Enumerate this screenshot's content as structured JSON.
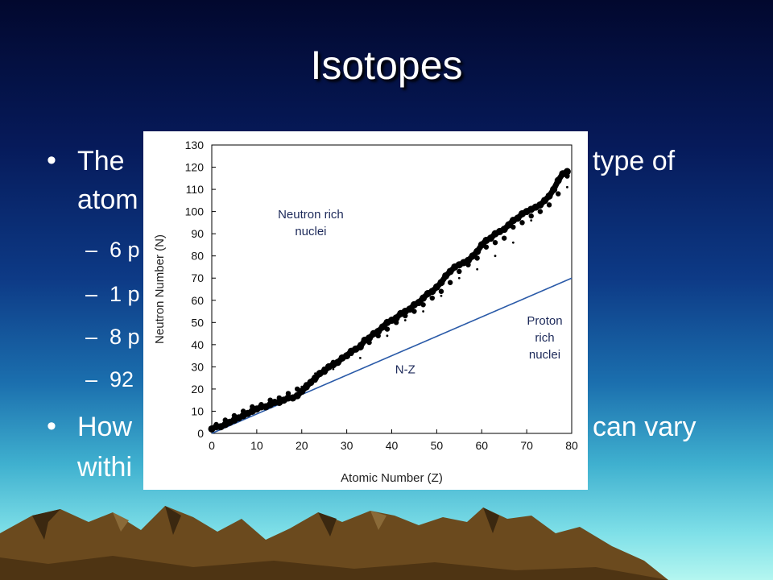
{
  "slide": {
    "title": "Isotopes",
    "bullets": [
      {
        "line1": "The",
        "line1_right": "type of",
        "line2": "atom"
      },
      {
        "line1": "How",
        "line1_right": "can vary",
        "line2": "withi"
      }
    ],
    "sub_items": [
      "6 p",
      "1 p",
      "8 p",
      "92"
    ],
    "dash": "–",
    "bullet_char": "•"
  },
  "chart_data": {
    "type": "scatter",
    "xlabel": "Atomic Number (Z)",
    "ylabel": "Neutron Number (N)",
    "xlim": [
      0,
      80
    ],
    "ylim": [
      0,
      130
    ],
    "xticks": [
      "0",
      "10",
      "20",
      "30",
      "40",
      "50",
      "60",
      "70",
      "80"
    ],
    "yticks": [
      "0",
      "10",
      "20",
      "30",
      "40",
      "50",
      "60",
      "70",
      "80",
      "90",
      "100",
      "110",
      "120",
      "130"
    ],
    "grid": false,
    "annotations": [
      {
        "lines": [
          "Neutron rich",
          "nuclei"
        ],
        "x": 22,
        "y": 97
      },
      {
        "lines": [
          "Proton",
          "rich",
          "nuclei"
        ],
        "x": 74,
        "y": 49
      },
      {
        "lines": [
          "N-Z"
        ],
        "x": 43,
        "y": 27
      }
    ],
    "reference_line": {
      "name": "N-Z",
      "points": [
        [
          0,
          0
        ],
        [
          80,
          70
        ]
      ]
    },
    "series": [
      {
        "x": [
          0,
          1,
          2,
          3,
          4,
          5,
          6,
          7,
          8,
          9,
          10,
          11,
          12,
          13,
          14,
          15,
          16,
          17,
          18,
          19,
          20,
          21,
          22,
          23,
          24,
          25,
          26,
          27,
          28,
          29,
          30,
          31,
          32,
          33,
          34,
          35,
          36,
          37,
          38,
          39,
          40,
          41,
          42,
          43,
          44,
          45,
          46,
          47,
          48,
          49,
          50,
          51,
          52,
          53,
          54,
          55,
          56,
          57,
          58,
          59,
          60,
          61,
          62,
          63,
          64,
          65,
          66,
          67,
          68,
          69,
          70,
          71,
          72,
          73,
          74,
          75,
          76,
          77,
          78,
          79
        ],
        "y": [
          2,
          3,
          3,
          4,
          5,
          6,
          7,
          8,
          9,
          10,
          11,
          12,
          12,
          13,
          14,
          14,
          15,
          16,
          16,
          17,
          19,
          21,
          23,
          25,
          27,
          28,
          30,
          31,
          32,
          34,
          35,
          37,
          38,
          39,
          42,
          43,
          45,
          46,
          48,
          50,
          51,
          52,
          54,
          55,
          56,
          58,
          59,
          61,
          63,
          64,
          66,
          68,
          71,
          73,
          75,
          76,
          77,
          78,
          80,
          82,
          85,
          87,
          88,
          90,
          91,
          92,
          94,
          96,
          97,
          99,
          100,
          101,
          102,
          103,
          105,
          107,
          110,
          114,
          117,
          118
        ]
      },
      {
        "x": [
          1,
          3,
          5,
          7,
          9,
          11,
          13,
          15,
          17,
          19,
          21,
          23,
          25,
          27,
          29,
          31,
          33,
          35,
          37,
          39,
          41,
          43,
          45,
          47,
          49,
          51,
          53,
          55,
          57,
          59,
          61,
          63,
          65,
          67,
          69,
          71,
          73,
          75,
          77,
          79
        ],
        "y": [
          4,
          6,
          8,
          10,
          12,
          13,
          15,
          16,
          18,
          20,
          22,
          24,
          29,
          32,
          34,
          36,
          40,
          41,
          44,
          47,
          50,
          53,
          55,
          58,
          61,
          64,
          68,
          73,
          76,
          79,
          84,
          86,
          88,
          93,
          95,
          98,
          100,
          103,
          108,
          116
        ]
      },
      {
        "x": [
          20,
          23,
          27,
          33,
          39,
          43,
          47,
          51,
          55,
          59,
          63,
          67,
          71,
          75,
          79
        ],
        "y": [
          21,
          27,
          29,
          34,
          44,
          51,
          55,
          62,
          70,
          74,
          80,
          86,
          96,
          103,
          111
        ]
      }
    ]
  }
}
